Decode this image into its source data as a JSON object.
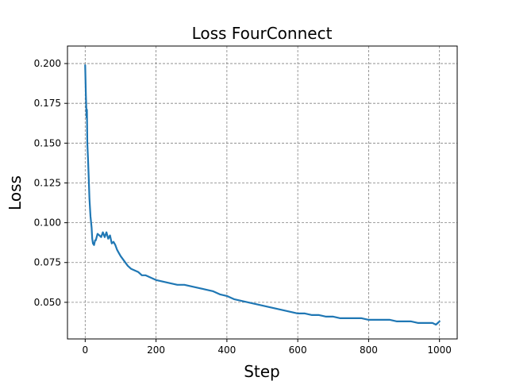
{
  "chart_data": {
    "type": "line",
    "title": "Loss FourConnect",
    "xlabel": "Step",
    "ylabel": "Loss",
    "xlim": [
      -50,
      1050
    ],
    "ylim": [
      0.027,
      0.211
    ],
    "grid": true,
    "grid_style": "dashed",
    "x_ticks": [
      0,
      200,
      400,
      600,
      800,
      1000
    ],
    "x_tick_labels": [
      "0",
      "200",
      "400",
      "600",
      "800",
      "1000"
    ],
    "y_ticks": [
      0.05,
      0.075,
      0.1,
      0.125,
      0.15,
      0.175,
      0.2
    ],
    "y_tick_labels": [
      "0.050",
      "0.075",
      "0.100",
      "0.125",
      "0.150",
      "0.175",
      "0.200"
    ],
    "series": [
      {
        "color": "#1f77b4",
        "x": [
          0,
          2,
          4,
          5,
          6,
          8,
          10,
          12,
          15,
          18,
          20,
          22,
          25,
          28,
          30,
          35,
          40,
          45,
          50,
          55,
          60,
          65,
          70,
          75,
          80,
          85,
          90,
          95,
          100,
          110,
          120,
          130,
          140,
          150,
          160,
          170,
          180,
          190,
          200,
          220,
          240,
          260,
          280,
          300,
          320,
          340,
          360,
          380,
          400,
          420,
          440,
          460,
          480,
          500,
          520,
          540,
          560,
          580,
          600,
          620,
          640,
          660,
          680,
          700,
          720,
          740,
          760,
          780,
          800,
          820,
          840,
          860,
          880,
          900,
          920,
          940,
          960,
          980,
          990,
          1000
        ],
        "y": [
          0.199,
          0.18,
          0.166,
          0.171,
          0.15,
          0.14,
          0.128,
          0.115,
          0.104,
          0.097,
          0.09,
          0.087,
          0.086,
          0.089,
          0.089,
          0.093,
          0.092,
          0.091,
          0.094,
          0.091,
          0.094,
          0.09,
          0.092,
          0.087,
          0.088,
          0.086,
          0.083,
          0.081,
          0.079,
          0.076,
          0.073,
          0.071,
          0.07,
          0.069,
          0.067,
          0.067,
          0.066,
          0.065,
          0.064,
          0.063,
          0.062,
          0.061,
          0.061,
          0.06,
          0.059,
          0.058,
          0.057,
          0.055,
          0.054,
          0.052,
          0.051,
          0.05,
          0.049,
          0.048,
          0.047,
          0.046,
          0.045,
          0.044,
          0.043,
          0.043,
          0.042,
          0.042,
          0.041,
          0.041,
          0.04,
          0.04,
          0.04,
          0.04,
          0.039,
          0.039,
          0.039,
          0.039,
          0.038,
          0.038,
          0.038,
          0.037,
          0.037,
          0.037,
          0.036,
          0.038
        ]
      }
    ]
  }
}
